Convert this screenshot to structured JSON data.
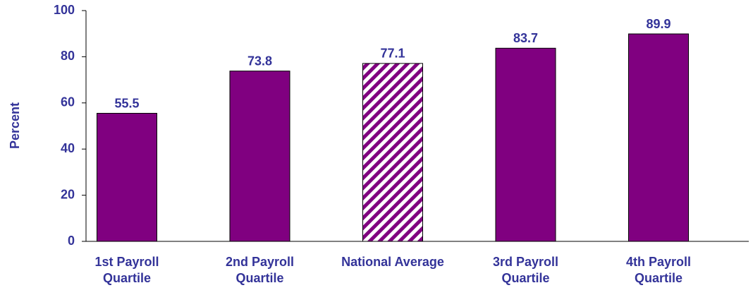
{
  "chart_data": {
    "type": "bar",
    "y_label": "Percent",
    "categories": [
      "1st Payroll Quartile",
      "2nd Payroll Quartile",
      "National Average",
      "3rd Payroll Quartile",
      "4th Payroll Quartile"
    ],
    "values": [
      55.5,
      73.8,
      77.1,
      83.7,
      89.9
    ],
    "color": "#800080",
    "hatched_category": "National Average",
    "ylim": [
      0,
      100
    ],
    "yticks": [
      0,
      20,
      40,
      60,
      80,
      100
    ],
    "grid": false
  }
}
